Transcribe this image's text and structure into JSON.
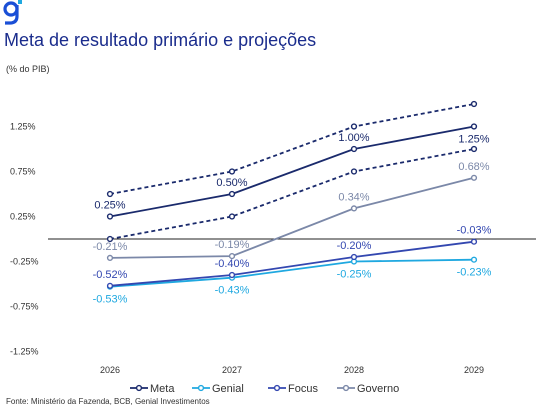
{
  "header": {
    "title": "Meta de resultado primário e projeções",
    "units": "(% do PIB)"
  },
  "footer": {
    "source": "Fonte: Ministério da Fazenda, BCB, Genial Investimentos"
  },
  "colors": {
    "meta": "#1a2a6c",
    "genial": "#1fa8e0",
    "focus": "#3347b0",
    "governo": "#7b88a8",
    "logo": "#1a4fd6"
  },
  "chart_data": {
    "type": "line",
    "title": "Meta de resultado primário e projeções",
    "ylabel": "(% do PIB)",
    "categories": [
      "2026",
      "2027",
      "2028",
      "2029"
    ],
    "ylim": [
      -1.25,
      1.5
    ],
    "yticks": [
      -1.25,
      -0.75,
      -0.25,
      0.25,
      0.75,
      1.25
    ],
    "ytick_labels": [
      "-1.25%",
      "-0.75%",
      "-0.25%",
      "0.25%",
      "0.75%",
      "1.25%"
    ],
    "zero_line": true,
    "grid": false,
    "legend_position": "bottom",
    "series": [
      {
        "name": "Meta",
        "values": [
          0.25,
          0.5,
          1.0,
          1.25
        ],
        "labels": [
          "0.25%",
          "0.50%",
          "1.00%",
          "1.25%"
        ],
        "label_pos": [
          "above",
          "above",
          "above",
          "below"
        ],
        "color": "#1a2a6c",
        "style": "solid"
      },
      {
        "name": "",
        "values": [
          0.5,
          0.75,
          1.25,
          1.5
        ],
        "labels": [],
        "color": "#1a2a6c",
        "style": "dashed"
      },
      {
        "name": "",
        "values": [
          0.0,
          0.25,
          0.75,
          1.0
        ],
        "labels": [],
        "color": "#1a2a6c",
        "style": "dashed"
      },
      {
        "name": "Genial",
        "values": [
          -0.53,
          -0.43,
          -0.25,
          -0.23
        ],
        "labels": [
          "-0.53%",
          "-0.43%",
          "-0.25%",
          "-0.23%"
        ],
        "label_pos": [
          "below",
          "below",
          "below",
          "below"
        ],
        "color": "#1fa8e0",
        "style": "solid"
      },
      {
        "name": "Focus",
        "values": [
          -0.52,
          -0.4,
          -0.2,
          -0.03
        ],
        "labels": [
          "-0.52%",
          "-0.40%",
          "-0.20%",
          "-0.03%"
        ],
        "label_pos": [
          "above",
          "above",
          "above",
          "above"
        ],
        "color": "#3347b0",
        "style": "solid"
      },
      {
        "name": "Governo",
        "values": [
          -0.21,
          -0.19,
          0.34,
          0.68
        ],
        "labels": [
          "-0.21%",
          "-0.19%",
          "0.34%",
          "0.68%"
        ],
        "label_pos": [
          "above",
          "above",
          "above",
          "above"
        ],
        "color": "#7b88a8",
        "style": "solid"
      }
    ]
  }
}
